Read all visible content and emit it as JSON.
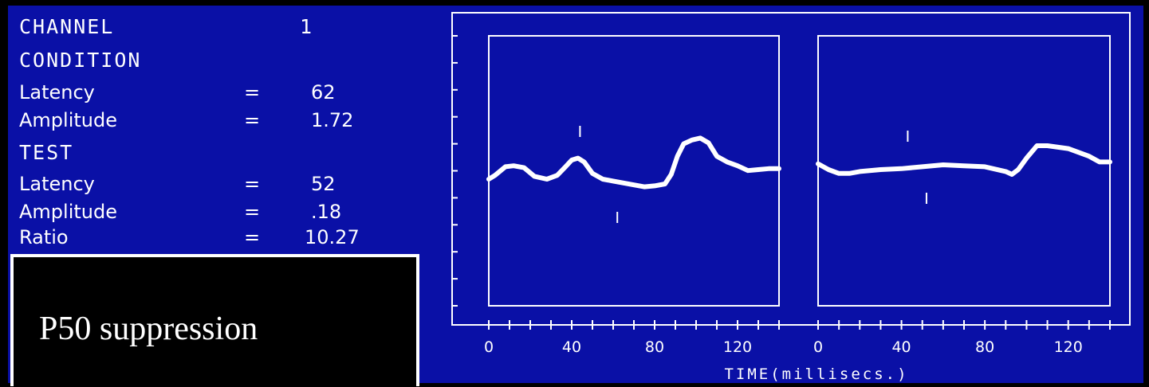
{
  "panel": {
    "channel_label": "CHANNEL",
    "channel_value": "1",
    "condition_label": "CONDITION",
    "condition": {
      "latency_label": "Latency",
      "latency_eq": "=",
      "latency_value": "62",
      "amplitude_label": "Amplitude",
      "amplitude_eq": "=",
      "amplitude_value": "1.72"
    },
    "test_label": "TEST",
    "test": {
      "latency_label": "Latency",
      "latency_eq": "=",
      "latency_value": "52",
      "amplitude_label": "Amplitude",
      "amplitude_eq": "=",
      "amplitude_value": ".18",
      "ratio_label": "Ratio",
      "ratio_eq": "=",
      "ratio_value": "10.27"
    }
  },
  "caption": "P50 suppression",
  "colors": {
    "background": "#0a10a6",
    "trace": "#ffffff",
    "outer": "#000000"
  },
  "chart_data": [
    {
      "type": "line",
      "name": "condition",
      "xlabel": "TIME(millisecs.)",
      "xticks": [
        0,
        40,
        80,
        120
      ],
      "xlim": [
        0,
        140
      ],
      "ylim": [
        -1,
        1
      ],
      "x": [
        0,
        3,
        8,
        12,
        17,
        22,
        28,
        33,
        37,
        40,
        43,
        46,
        50,
        55,
        60,
        65,
        70,
        75,
        80,
        85,
        88,
        91,
        94,
        98,
        102,
        106,
        110,
        115,
        120,
        125,
        130,
        135,
        140
      ],
      "y": [
        -0.1,
        -0.06,
        0.03,
        0.04,
        0.02,
        -0.07,
        -0.1,
        -0.06,
        0.03,
        0.1,
        0.12,
        0.08,
        -0.04,
        -0.1,
        -0.12,
        -0.14,
        -0.16,
        -0.18,
        -0.17,
        -0.15,
        -0.05,
        0.14,
        0.27,
        0.31,
        0.33,
        0.28,
        0.14,
        0.08,
        0.04,
        -0.01,
        0.0,
        0.01,
        0.01
      ],
      "markers": [
        {
          "x": 44,
          "y": 0.4,
          "direction": "up"
        },
        {
          "x": 62,
          "y": -0.5,
          "direction": "down"
        }
      ]
    },
    {
      "type": "line",
      "name": "test",
      "xlabel": "TIME(millisecs.)",
      "xticks": [
        0,
        40,
        80,
        120
      ],
      "xlim": [
        0,
        140
      ],
      "ylim": [
        -1,
        1
      ],
      "x": [
        0,
        5,
        10,
        15,
        20,
        30,
        40,
        50,
        60,
        70,
        80,
        90,
        93,
        96,
        100,
        105,
        110,
        120,
        130,
        135,
        140
      ],
      "y": [
        0.06,
        0.0,
        -0.04,
        -0.04,
        -0.02,
        0.0,
        0.01,
        0.03,
        0.05,
        0.04,
        0.03,
        -0.02,
        -0.05,
        0.0,
        0.12,
        0.25,
        0.25,
        0.22,
        0.14,
        0.08,
        0.08
      ],
      "markers": [
        {
          "x": 43,
          "y": 0.35,
          "direction": "up"
        },
        {
          "x": 52,
          "y": -0.3,
          "direction": "down"
        }
      ]
    }
  ]
}
